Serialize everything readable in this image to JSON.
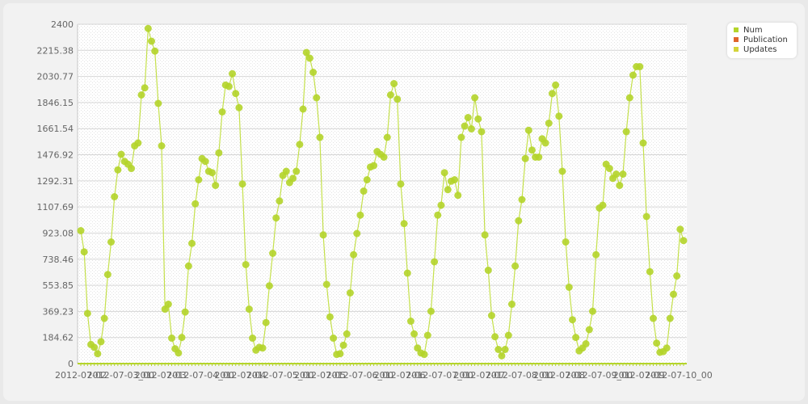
{
  "chart_data": {
    "type": "line",
    "y_ticks": [
      "0",
      "184.62",
      "369.23",
      "553.85",
      "738.46",
      "923.08",
      "1107.69",
      "1292.31",
      "1476.92",
      "1661.54",
      "1846.15",
      "2030.77",
      "2215.38",
      "2400"
    ],
    "ylim": [
      0,
      2400
    ],
    "x_tick_labels": [
      "2012-07-02",
      "2012-07-03_00",
      "2012-07-03",
      "2012-07-04_00",
      "2012-07-04",
      "2012-07-05_00",
      "2012-07-05",
      "2012-07-06_00",
      "2012-07-06",
      "2012-07-07_00",
      "2012-07-07",
      "2012-07-08_00",
      "2012-07-08",
      "2012-07-09_00",
      "2012-07-09",
      "2012-07-10_00"
    ],
    "grid": true,
    "legend_placement": "top-right",
    "series": [
      {
        "name": "Num",
        "color": "#b4d42a",
        "values": [
          940,
          790,
          355,
          135,
          115,
          70,
          155,
          320,
          630,
          860,
          1180,
          1370,
          1480,
          1430,
          1410,
          1380,
          1540,
          1560,
          1900,
          1950,
          2370,
          2280,
          2210,
          1840,
          1540,
          385,
          420,
          180,
          105,
          75,
          185,
          365,
          690,
          850,
          1130,
          1300,
          1450,
          1430,
          1360,
          1350,
          1260,
          1490,
          1780,
          1970,
          1960,
          2050,
          1910,
          1810,
          1270,
          700,
          385,
          180,
          95,
          115,
          110,
          290,
          550,
          780,
          1030,
          1150,
          1330,
          1360,
          1280,
          1310,
          1360,
          1550,
          1800,
          2200,
          2160,
          2060,
          1880,
          1600,
          910,
          560,
          330,
          180,
          65,
          70,
          130,
          210,
          500,
          770,
          920,
          1050,
          1220,
          1300,
          1390,
          1400,
          1500,
          1480,
          1460,
          1600,
          1900,
          1980,
          1870,
          1270,
          990,
          640,
          300,
          210,
          110,
          75,
          65,
          200,
          370,
          720,
          1050,
          1120,
          1350,
          1230,
          1290,
          1300,
          1190,
          1600,
          1680,
          1740,
          1660,
          1880,
          1730,
          1640,
          910,
          660,
          340,
          190,
          100,
          55,
          100,
          200,
          420,
          690,
          1010,
          1160,
          1450,
          1650,
          1510,
          1460,
          1460,
          1590,
          1560,
          1700,
          1910,
          1970,
          1750,
          1360,
          860,
          540,
          310,
          185,
          90,
          110,
          140,
          240,
          370,
          770,
          1100,
          1120,
          1410,
          1380,
          1310,
          1340,
          1260,
          1340,
          1640,
          1880,
          2040,
          2100,
          2100,
          1560,
          1040,
          650,
          320,
          145,
          80,
          85,
          110,
          320,
          490,
          620,
          950,
          870
        ]
      },
      {
        "name": "Publication",
        "color": "#e0642a",
        "values": []
      },
      {
        "name": "Updates",
        "color": "#d4d43a",
        "values": []
      }
    ]
  }
}
